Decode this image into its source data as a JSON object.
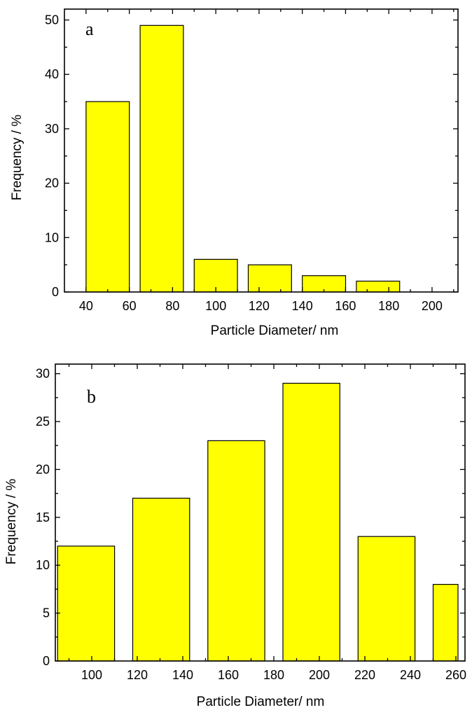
{
  "chart_data": [
    {
      "type": "bar",
      "panel_label": "a",
      "xlabel": "Particle Diameter/ nm",
      "ylabel": "Frequency / %",
      "bar_color": "#ffff00",
      "xlim": [
        30,
        212
      ],
      "ylim": [
        0,
        52
      ],
      "xticks_major": [
        40,
        60,
        80,
        100,
        120,
        140,
        160,
        180,
        200
      ],
      "xticks_minor": [
        50,
        70,
        90,
        110,
        130,
        150,
        170,
        190,
        210
      ],
      "yticks_major": [
        0,
        10,
        20,
        30,
        40,
        50
      ],
      "yticks_minor": [
        5,
        15,
        25,
        35,
        45
      ],
      "bins": [
        {
          "from": 40,
          "to": 60,
          "value": 35
        },
        {
          "from": 65,
          "to": 85,
          "value": 49
        },
        {
          "from": 90,
          "to": 110,
          "value": 6
        },
        {
          "from": 115,
          "to": 135,
          "value": 5
        },
        {
          "from": 140,
          "to": 160,
          "value": 3
        },
        {
          "from": 165,
          "to": 185,
          "value": 2
        }
      ],
      "xtick_labels": [
        {
          "x": 40,
          "label": "40"
        },
        {
          "x": 60,
          "label": "60"
        },
        {
          "x": 80,
          "label": "80"
        },
        {
          "x": 100,
          "label": "100"
        },
        {
          "x": 120,
          "label": "120"
        },
        {
          "x": 140,
          "label": "140"
        },
        {
          "x": 160,
          "label": "160"
        },
        {
          "x": 180,
          "label": "180"
        },
        {
          "x": 200,
          "label": "200"
        }
      ]
    },
    {
      "type": "bar",
      "panel_label": "b",
      "xlabel": "Particle Diameter/ nm",
      "ylabel": "Frequency / %",
      "bar_color": "#ffff00",
      "xlim": [
        84,
        264
      ],
      "ylim": [
        0,
        31
      ],
      "xticks_major": [
        100,
        120,
        140,
        160,
        180,
        200,
        220,
        240,
        260
      ],
      "xticks_minor": [
        90,
        110,
        130,
        150,
        170,
        190,
        210,
        230,
        250
      ],
      "yticks_major": [
        0,
        5,
        10,
        15,
        20,
        25,
        30
      ],
      "yticks_minor": [
        2.5,
        7.5,
        12.5,
        17.5,
        22.5,
        27.5
      ],
      "bins": [
        {
          "from": 85,
          "to": 110,
          "value": 12
        },
        {
          "from": 118,
          "to": 143,
          "value": 17
        },
        {
          "from": 151,
          "to": 176,
          "value": 23
        },
        {
          "from": 184,
          "to": 209,
          "value": 29
        },
        {
          "from": 217,
          "to": 242,
          "value": 13
        },
        {
          "from": 250,
          "to": 275,
          "value": 8
        }
      ],
      "xtick_labels": [
        {
          "x": 100,
          "label": "100"
        },
        {
          "x": 120,
          "label": "120"
        },
        {
          "x": 140,
          "label": "140"
        },
        {
          "x": 160,
          "label": "160"
        },
        {
          "x": 180,
          "label": "180"
        },
        {
          "x": 200,
          "label": "200"
        },
        {
          "x": 220,
          "label": "220"
        },
        {
          "x": 240,
          "label": "240"
        },
        {
          "x": 260,
          "label": "260"
        }
      ]
    }
  ]
}
